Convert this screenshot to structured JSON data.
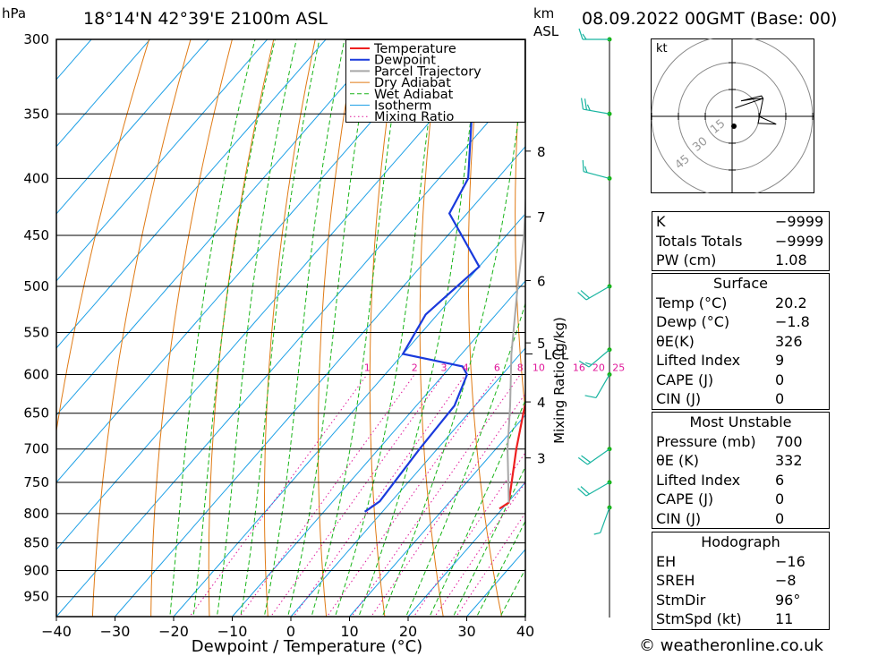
{
  "header": {
    "pressure_unit": "hPa",
    "location": "18°14'N  42°39'E  2100m  ASL",
    "height_unit_line1": "km",
    "height_unit_line2": "ASL",
    "datetime": "08.09.2022  00GMT  (Base: 00)"
  },
  "chart_data": {
    "type": "line",
    "title": "",
    "xlabel": "Dewpoint / Temperature (°C)",
    "ylabel": "hPa",
    "x_ticks": [
      "-40",
      "-30",
      "-20",
      "-10",
      "0",
      "10",
      "20",
      "30",
      "40"
    ],
    "xlim": [
      -40,
      40
    ],
    "y_scale": "log",
    "ylim": [
      990,
      300
    ],
    "pressure_levels": [
      300,
      350,
      400,
      450,
      500,
      550,
      600,
      650,
      700,
      750,
      800,
      850,
      900,
      950
    ],
    "km_ticks": [
      {
        "km": 3,
        "p": 713
      },
      {
        "km": 4,
        "p": 635
      },
      {
        "km": 5,
        "p": 562
      },
      {
        "km": 6,
        "p": 494
      },
      {
        "km": 7,
        "p": 433
      },
      {
        "km": 8,
        "p": 378
      }
    ],
    "lcl": {
      "label": "LCL",
      "p": 575
    },
    "mixing_ratio_label": "Mixing Ratio (g/kg)",
    "mixing_ratio_values": [
      "1",
      "2",
      "3",
      "4",
      "6",
      "8",
      "10",
      "16",
      "20",
      "25"
    ],
    "skew_deg_per_log": 72,
    "legend": [
      "Temperature",
      "Dewpoint",
      "Parcel Trajectory",
      "Dry Adiabat",
      "Wet Adiabat",
      "Isotherm",
      "Mixing Ratio"
    ],
    "legend_position": "top-right",
    "colors": {
      "temperature": "#ee2020",
      "dewpoint": "#1a3adc",
      "parcel": "#a8a8a8",
      "dry_adiabat": "#e07a14",
      "wet_adiabat": "#18b418",
      "isotherm": "#1ea0e6",
      "mixing_ratio": "#e0189a"
    },
    "series": [
      {
        "name": "Temperature",
        "points": [
          [
            792,
            19.5
          ],
          [
            782,
            20.2
          ],
          [
            700,
            13.5
          ],
          [
            640,
            8.5
          ],
          [
            600,
            6.5
          ],
          [
            585,
            7.5
          ],
          [
            560,
            7.0
          ],
          [
            500,
            3.0
          ],
          [
            480,
            0.5
          ],
          [
            450,
            -3.0
          ],
          [
            420,
            -6.0
          ],
          [
            400,
            -9.5
          ],
          [
            360,
            -15.5
          ],
          [
            330,
            -21.0
          ],
          [
            300,
            -26.0
          ]
        ]
      },
      {
        "name": "Dewpoint",
        "points": [
          [
            797,
            -3.0
          ],
          [
            780,
            -2.0
          ],
          [
            700,
            -3.0
          ],
          [
            640,
            -3.5
          ],
          [
            600,
            -6.0
          ],
          [
            590,
            -8.0
          ],
          [
            575,
            -20.0
          ],
          [
            530,
            -22.0
          ],
          [
            480,
            -20.0
          ],
          [
            430,
            -33.0
          ],
          [
            400,
            -35.0
          ],
          [
            350,
            -44.0
          ],
          [
            345,
            -55.0
          ],
          [
            320,
            -60.0
          ],
          [
            300,
            -63.0
          ]
        ]
      },
      {
        "name": "Parcel Trajectory",
        "points": [
          [
            782,
            20.2
          ],
          [
            700,
            12.0
          ],
          [
            640,
            6.0
          ],
          [
            575,
            -1.5
          ],
          [
            500,
            -10.5
          ],
          [
            450,
            -17.0
          ],
          [
            400,
            -25.0
          ],
          [
            350,
            -34.5
          ],
          [
            300,
            -46.5
          ]
        ]
      }
    ]
  },
  "hodograph": {
    "unit": "kt",
    "ring_labels": [
      "15",
      "30",
      "45"
    ]
  },
  "winds": [
    {
      "p": 300,
      "dir": 270,
      "spd": 15
    },
    {
      "p": 350,
      "dir": 280,
      "spd": 25
    },
    {
      "p": 400,
      "dir": 285,
      "spd": 15
    },
    {
      "p": 500,
      "dir": 240,
      "spd": 20
    },
    {
      "p": 570,
      "dir": 230,
      "spd": 15
    },
    {
      "p": 600,
      "dir": 210,
      "spd": 10
    },
    {
      "p": 700,
      "dir": 235,
      "spd": 20
    },
    {
      "p": 750,
      "dir": 240,
      "spd": 20
    },
    {
      "p": 790,
      "dir": 200,
      "spd": 5
    }
  ],
  "indices": {
    "rows": [
      {
        "label": "K",
        "value": "-9999"
      },
      {
        "label": "Totals Totals",
        "value": "-9999"
      },
      {
        "label": "PW (cm)",
        "value": "1.08"
      }
    ],
    "surface": {
      "title": "Surface",
      "rows": [
        {
          "label": "Temp (°C)",
          "value": "20.2"
        },
        {
          "label": "Dewp (°C)",
          "value": "-1.8"
        },
        {
          "label": "θE(K)",
          "value": "326"
        },
        {
          "label": "Lifted Index",
          "value": "9"
        },
        {
          "label": "CAPE (J)",
          "value": "0"
        },
        {
          "label": "CIN (J)",
          "value": "0"
        }
      ]
    },
    "most_unstable": {
      "title": "Most Unstable",
      "rows": [
        {
          "label": "Pressure (mb)",
          "value": "700"
        },
        {
          "label": "θE (K)",
          "value": "332"
        },
        {
          "label": "Lifted Index",
          "value": "6"
        },
        {
          "label": "CAPE (J)",
          "value": "0"
        },
        {
          "label": "CIN (J)",
          "value": "0"
        }
      ]
    },
    "hodograph": {
      "title": "Hodograph",
      "rows": [
        {
          "label": "EH",
          "value": "-16"
        },
        {
          "label": "SREH",
          "value": "-8"
        },
        {
          "label": "StmDir",
          "value": "96°"
        },
        {
          "label": "StmSpd (kt)",
          "value": "11"
        }
      ]
    }
  },
  "footer": {
    "copyright": "© weatheronline.co.uk"
  }
}
